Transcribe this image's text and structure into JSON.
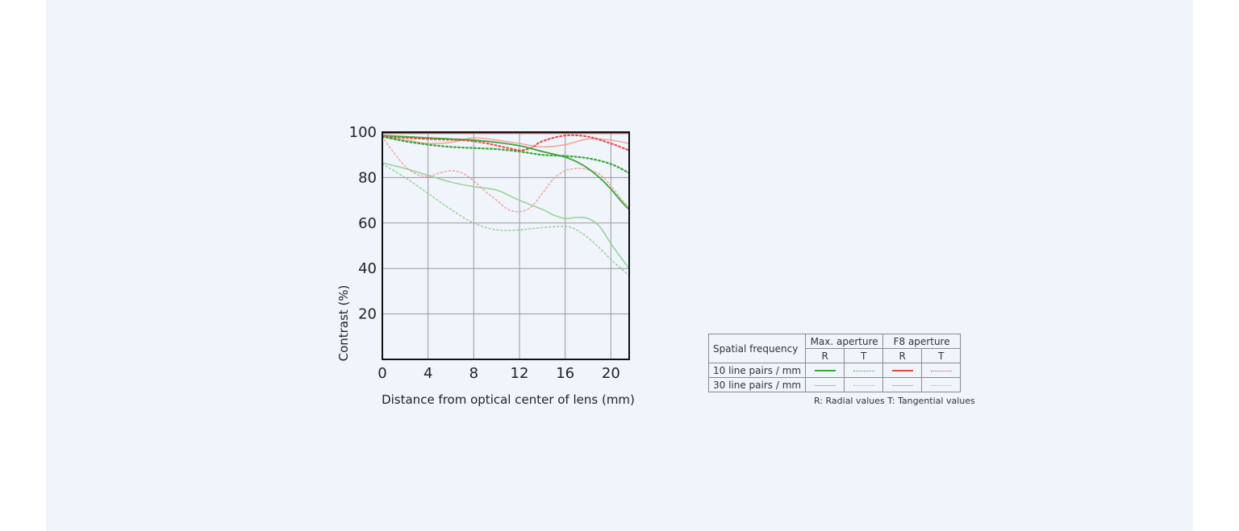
{
  "chart_data": {
    "type": "line",
    "title": "",
    "xlabel": "Distance from optical center of lens (mm)",
    "ylabel": "Contrast (%)",
    "xlim": [
      0,
      21.6
    ],
    "ylim": [
      0,
      100
    ],
    "x_ticks": [
      "0",
      "4",
      "8",
      "12",
      "16",
      "20"
    ],
    "y_ticks": [
      "20",
      "40",
      "60",
      "80",
      "100"
    ],
    "grid": true,
    "legend": "bottom-right table",
    "colors": {
      "max_aperture": "#3aa63a",
      "max_aperture_30": "#8fcf8f",
      "f8_aperture": "#e8453c",
      "f8_aperture_30": "#f0a090"
    },
    "series": [
      {
        "name": "10 line pairs / mm — Max. aperture R",
        "x": [
          0,
          2,
          4,
          6,
          8,
          10,
          12,
          14,
          16,
          17,
          18,
          19,
          20,
          21,
          21.6
        ],
        "y": [
          98.5,
          98,
          97.5,
          97,
          96.5,
          95.5,
          94,
          91.5,
          89,
          87,
          84,
          80,
          75,
          69,
          66
        ]
      },
      {
        "name": "10 line pairs / mm — Max. aperture T",
        "x": [
          0,
          2,
          4,
          6,
          8,
          10,
          12,
          14,
          16,
          18,
          20,
          21.6
        ],
        "y": [
          98,
          96,
          94.5,
          93.5,
          93,
          92.5,
          91.5,
          90,
          89.5,
          88.5,
          86,
          82
        ]
      },
      {
        "name": "30 line pairs / mm — Max. aperture R",
        "x": [
          0,
          2,
          4,
          6,
          8,
          10,
          12,
          14,
          15,
          16,
          17,
          18,
          19,
          20,
          21,
          21.6
        ],
        "y": [
          86.5,
          84,
          81,
          78,
          76,
          74.5,
          70,
          66,
          63.5,
          62,
          62.5,
          62,
          58.5,
          51,
          44,
          40
        ]
      },
      {
        "name": "30 line pairs / mm — Max. aperture T",
        "x": [
          0,
          2,
          4,
          6,
          8,
          10,
          12,
          14,
          16,
          17,
          18,
          19,
          20,
          21,
          21.6
        ],
        "y": [
          86,
          80,
          73,
          66,
          60,
          57,
          57,
          58,
          58.5,
          57,
          53.5,
          49,
          44,
          39.5,
          37
        ]
      },
      {
        "name": "10 line pairs / mm — F8 aperture R",
        "x": [
          0,
          4,
          8,
          12,
          16,
          20,
          21.6
        ],
        "y": [
          99.5,
          99.5,
          99.5,
          99.5,
          99.5,
          99.5,
          99.5
        ]
      },
      {
        "name": "10 line pairs / mm — F8 aperture T",
        "x": [
          0,
          4,
          8,
          11,
          12,
          13,
          14,
          16,
          18,
          20,
          21.6
        ],
        "y": [
          98,
          97,
          96,
          93,
          92,
          93,
          96,
          98.5,
          98,
          95,
          92
        ]
      },
      {
        "name": "30 line pairs / mm — F8 aperture R",
        "x": [
          0,
          2,
          4,
          6,
          8,
          10,
          12,
          14,
          16,
          18,
          20,
          21.6
        ],
        "y": [
          98,
          96.5,
          95,
          95.5,
          97.5,
          96.5,
          95,
          93.5,
          94.5,
          97,
          96.5,
          95
        ]
      },
      {
        "name": "30 line pairs / mm — F8 aperture T",
        "x": [
          0,
          1,
          2,
          3,
          4,
          5,
          6,
          7,
          8,
          9,
          10,
          11,
          12,
          13,
          14,
          15,
          16,
          17,
          18,
          19,
          20,
          21,
          21.6
        ],
        "y": [
          98,
          91,
          85,
          81.5,
          80.5,
          82,
          83,
          82,
          78.5,
          74,
          70,
          66,
          65,
          67,
          73,
          79.5,
          83,
          84,
          83.5,
          81.5,
          76.5,
          70,
          67
        ]
      }
    ]
  },
  "legend_table": {
    "freq_header": "Spatial frequency",
    "max_aperture": "Max. aperture",
    "f8_aperture": "F8 aperture",
    "r": "R",
    "t": "T",
    "row_10": "10 line pairs / mm",
    "row_30": "30 line pairs / mm"
  },
  "legend_note": "R: Radial values  T: Tangential values"
}
